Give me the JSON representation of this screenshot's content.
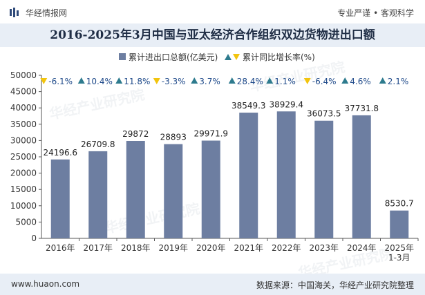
{
  "header": {
    "logo_text": "华经情报网",
    "tagline": "专业严谨 • 客观科学"
  },
  "colors": {
    "bar": "#6d7ea1",
    "up_arrow": "#2e7b8e",
    "down_arrow": "#f2c40d",
    "title_band": "#e8eef6"
  },
  "chart_data": {
    "type": "bar",
    "title": "2016-2025年3月中国与亚太经济合作组织双边货物进出口额",
    "categories": [
      "2016年",
      "2017年",
      "2018年",
      "2019年",
      "2020年",
      "2021年",
      "2022年",
      "2023年",
      "2024年",
      "2025年\n1-3月"
    ],
    "series": [
      {
        "name": "累计进出口总额(亿美元)",
        "type": "bar",
        "values": [
          24196.6,
          26709.8,
          29872,
          28893,
          29971.9,
          38549.3,
          38929.4,
          36073.5,
          37731.8,
          8530.7
        ],
        "value_labels": [
          "24196.6",
          "26709.8",
          "29872",
          "28893",
          "29971.9",
          "38549.3",
          "38929.4",
          "36073.5",
          "37731.8",
          "8530.7"
        ]
      },
      {
        "name": "累计同比增长率(%)",
        "type": "arrow-label",
        "values": [
          -6.1,
          10.4,
          11.8,
          -3.3,
          3.7,
          28.4,
          1.1,
          -6.4,
          4.6,
          2.1
        ],
        "value_labels": [
          "-6.1%",
          "10.4%",
          "11.8%",
          "-3.3%",
          "3.7%",
          "28.4%",
          "1.1%",
          "-6.4%",
          "4.6%",
          "2.1%"
        ]
      }
    ],
    "ylim": [
      0,
      50000
    ],
    "yticks": [
      "0",
      "5000",
      "10000",
      "15000",
      "20000",
      "25000",
      "30000",
      "35000",
      "40000",
      "45000",
      "50000"
    ],
    "grid": false,
    "legend": "top-center"
  },
  "footer": {
    "url": "www.huaon.com",
    "source": "数据来源：中国海关，华经产业研究院整理"
  },
  "watermark": {
    "text_cn": "华经产业研究院",
    "text_url": "www.huaon.com"
  }
}
